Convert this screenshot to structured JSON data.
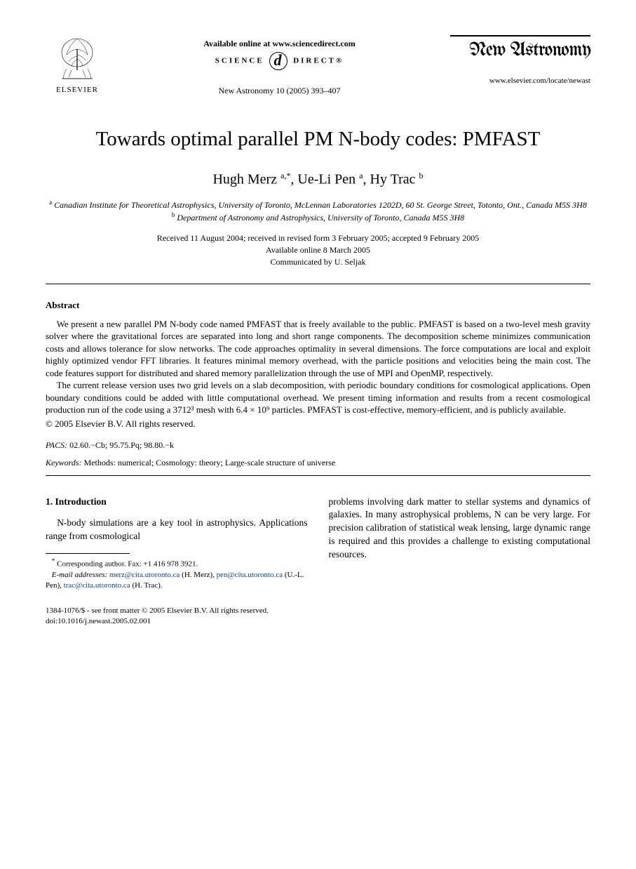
{
  "header": {
    "publisher_label": "ELSEVIER",
    "available_online": "Available online at www.sciencedirect.com",
    "science_direct_left": "SCIENCE",
    "science_direct_right": "DIRECT®",
    "citation": "New Astronomy 10 (2005) 393–407",
    "journal_name": "New Astronomy",
    "journal_url": "www.elsevier.com/locate/newast"
  },
  "title": "Towards optimal parallel PM N-body codes: PMFAST",
  "authors_html": "Hugh Merz <sup>a,*</sup>, Ue-Li Pen <sup>a</sup>, Hy Trac <sup>b</sup>",
  "affiliations": {
    "a": "Canadian Institute for Theoretical Astrophysics, University of Toronto, McLennan Laboratories 1202D, 60 St. George Street, Totonto, Ont., Canada M5S 3H8",
    "b": "Department of Astronomy and Astrophysics, University of Toronto, Canada M5S 3H8"
  },
  "dates": {
    "line1": "Received 11 August 2004; received in revised form 3 February 2005; accepted 9 February 2005",
    "line2": "Available online 8 March 2005",
    "line3": "Communicated by U. Seljak"
  },
  "abstract": {
    "heading": "Abstract",
    "p1": "We present a new parallel PM N-body code named PMFAST that is freely available to the public. PMFAST is based on a two-level mesh gravity solver where the gravitational forces are separated into long and short range components. The decomposition scheme minimizes communication costs and allows tolerance for slow networks. The code approaches optimality in several dimensions. The force computations are local and exploit highly optimized vendor FFT libraries. It features minimal memory overhead, with the particle positions and velocities being the main cost. The code features support for distributed and shared memory parallelization through the use of MPI and OpenMP, respectively.",
    "p2": "The current release version uses two grid levels on a slab decomposition, with periodic boundary conditions for cosmological applications. Open boundary conditions could be added with little computational overhead. We present timing information and results from a recent cosmological production run of the code using a 3712³ mesh with 6.4 × 10⁹ particles. PMFAST is cost-effective, memory-efficient, and is publicly available.",
    "copyright": "© 2005 Elsevier B.V. All rights reserved."
  },
  "pacs": {
    "label": "PACS:",
    "codes": "02.60.−Cb; 95.75.Pq; 98.80.−k"
  },
  "keywords": {
    "label": "Keywords:",
    "text": "Methods: numerical; Cosmology: theory; Large-scale structure of universe"
  },
  "section1": {
    "heading": "1. Introduction",
    "col1": "N-body simulations are a key tool in astrophysics. Applications range from cosmological",
    "col2": "problems involving dark matter to stellar systems and dynamics of galaxies. In many astrophysical problems, N can be very large. For precision calibration of statistical weak lensing, large dynamic range is required and this provides a challenge to existing computational resources."
  },
  "footnotes": {
    "corr": "Corresponding author. Fax: +1 416 978 3921.",
    "email_label": "E-mail addresses:",
    "email1": "merz@cita.utoronto.ca",
    "email1_name": "(H. Merz),",
    "email2": "pen@cita.utoronto.ca",
    "email2_name": "(U.-L. Pen),",
    "email3": "trac@cita.utoronto.ca",
    "email3_name": "(H. Trac)."
  },
  "footer": {
    "line1": "1384-1076/$ - see front matter © 2005 Elsevier B.V. All rights reserved.",
    "line2": "doi:10.1016/j.newast.2005.02.001"
  },
  "colors": {
    "link": "#0645ad",
    "text": "#000000",
    "background": "#ffffff"
  }
}
